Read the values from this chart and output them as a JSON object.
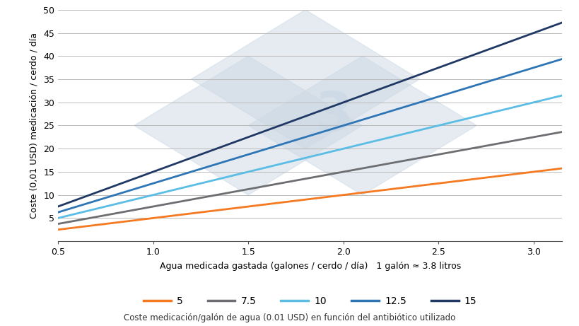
{
  "xlabel": "Agua medicada gastada (galones / cerdo / día)   1 galón ≈ 3.8 litros",
  "ylabel": "Coste (0,01 USD) medicación / cerdo / día",
  "xlim": [
    0.5,
    3.15
  ],
  "ylim": [
    0,
    50
  ],
  "xticks": [
    0.5,
    1.0,
    1.5,
    2.0,
    2.5,
    3.0
  ],
  "yticks": [
    0,
    5,
    10,
    15,
    20,
    25,
    30,
    35,
    40,
    45,
    50
  ],
  "x_start": 0.5,
  "x_end": 3.15,
  "rates": [
    5,
    7.5,
    10,
    12.5,
    15
  ],
  "colors": [
    "#f47920",
    "#6d6e71",
    "#5bbde4",
    "#2e75b6",
    "#1f3864"
  ],
  "legend_title": "Coste medicación/galón de agua (0.01 USD) en función del antibiótico utilizado",
  "legend_labels": [
    "5",
    "7.5",
    "10",
    "12.5",
    "15"
  ],
  "background_color": "#ffffff",
  "grid_color": "#bbbbbb",
  "watermark_color": "#cdd9e5",
  "figsize": [
    8.2,
    4.61
  ],
  "dpi": 100
}
